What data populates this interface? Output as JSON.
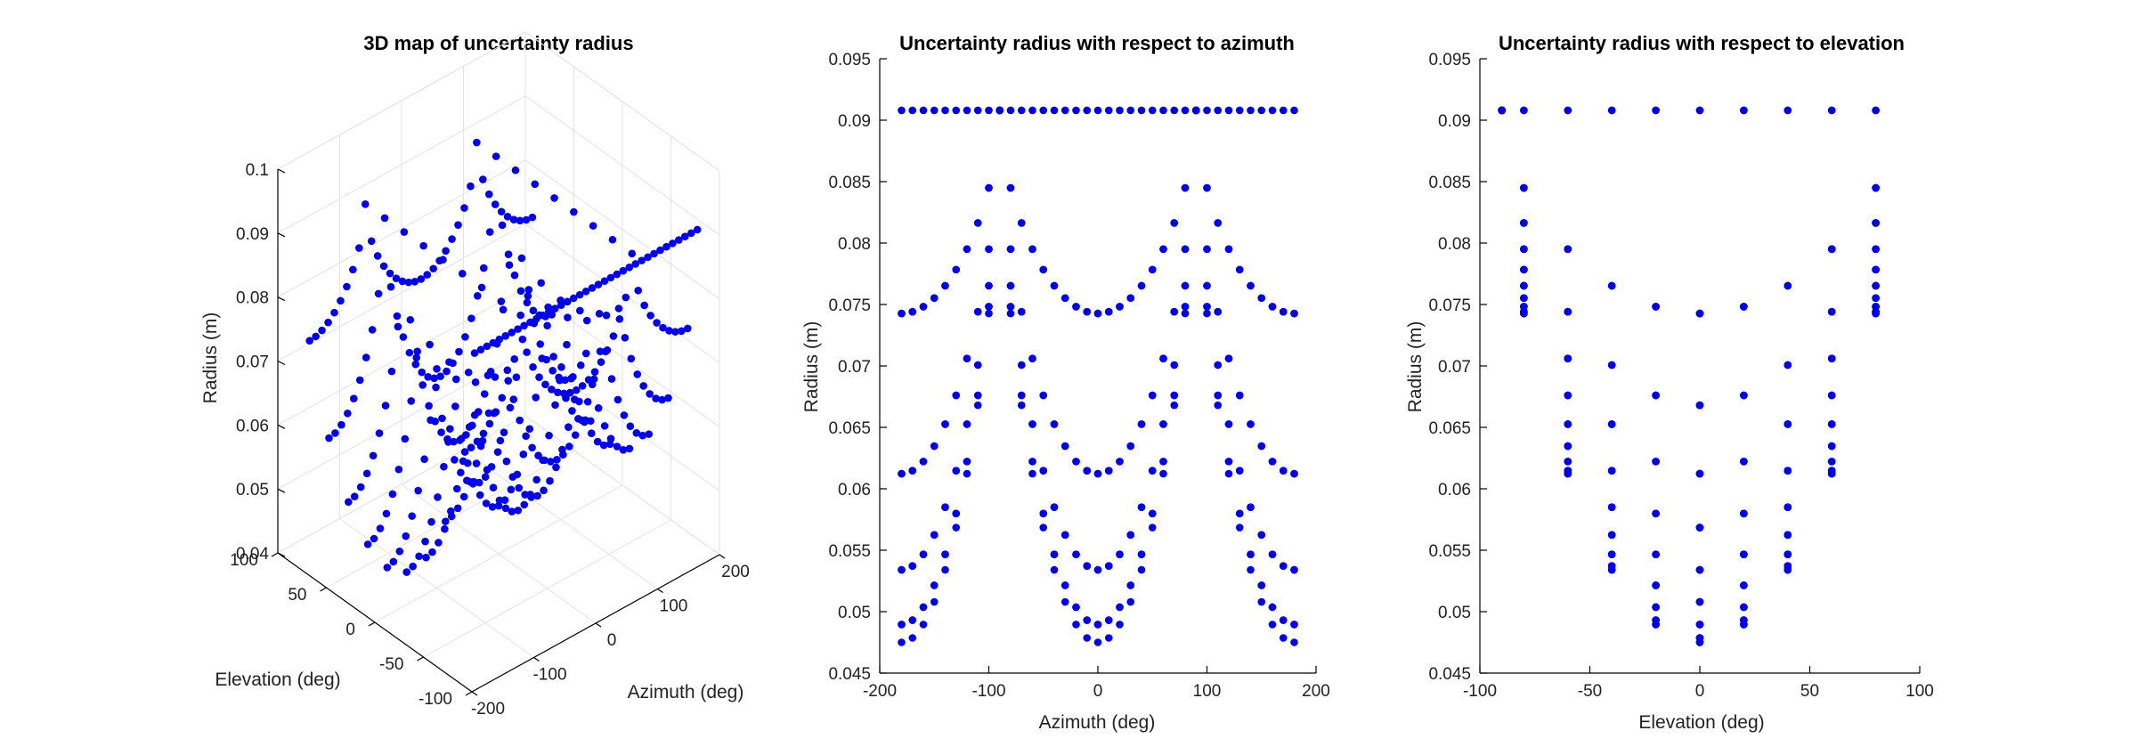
{
  "marker_color": "#0000ee",
  "chart_data": [
    {
      "type": "scatter3d",
      "title": "3D map of uncertainty radius",
      "xlabel": "Azimuth (deg)",
      "ylabel": "Elevation (deg)",
      "zlabel": "Radius (m)",
      "xlim": [
        -200,
        200
      ],
      "ylim": [
        -100,
        100
      ],
      "zlim": [
        0.04,
        0.1
      ],
      "x_ticks": [
        "-200",
        "-100",
        "0",
        "100",
        "200"
      ],
      "y_ticks": [
        "-100",
        "-50",
        "0",
        "50",
        "100"
      ],
      "z_ticks": [
        "0.04",
        "0.05",
        "0.06",
        "0.07",
        "0.08",
        "0.09",
        "0.1"
      ],
      "grid": true,
      "sampling": {
        "azimuth_start": -180,
        "azimuth_step": 10,
        "azimuth_count": 37,
        "elevation_values": [
          -90,
          -80,
          -60,
          -40,
          -20,
          0,
          20,
          40,
          60,
          80
        ]
      },
      "radius_model": {
        "min": 0.0475,
        "max": 0.0908
      }
    },
    {
      "type": "scatter",
      "title": "Uncertainty radius with respect to azimuth",
      "xlabel": "Azimuth (deg)",
      "ylabel": "Radius (m)",
      "xlim": [
        -200,
        200
      ],
      "ylim": [
        0.045,
        0.095
      ],
      "x_ticks": [
        "-200",
        "-100",
        "0",
        "100",
        "200"
      ],
      "y_ticks": [
        "0.045",
        "0.05",
        "0.055",
        "0.06",
        "0.065",
        "0.07",
        "0.075",
        "0.08",
        "0.085",
        "0.09",
        "0.095"
      ],
      "grid": false
    },
    {
      "type": "scatter",
      "title": "Uncertainty radius with respect to elevation",
      "xlabel": "Elevation (deg)",
      "ylabel": "Radius (m)",
      "xlim": [
        -100,
        100
      ],
      "ylim": [
        0.045,
        0.095
      ],
      "x_ticks": [
        "-100",
        "-50",
        "0",
        "50",
        "100"
      ],
      "y_ticks": [
        "0.045",
        "0.05",
        "0.055",
        "0.06",
        "0.065",
        "0.07",
        "0.075",
        "0.08",
        "0.085",
        "0.09",
        "0.095"
      ],
      "grid": false
    }
  ]
}
